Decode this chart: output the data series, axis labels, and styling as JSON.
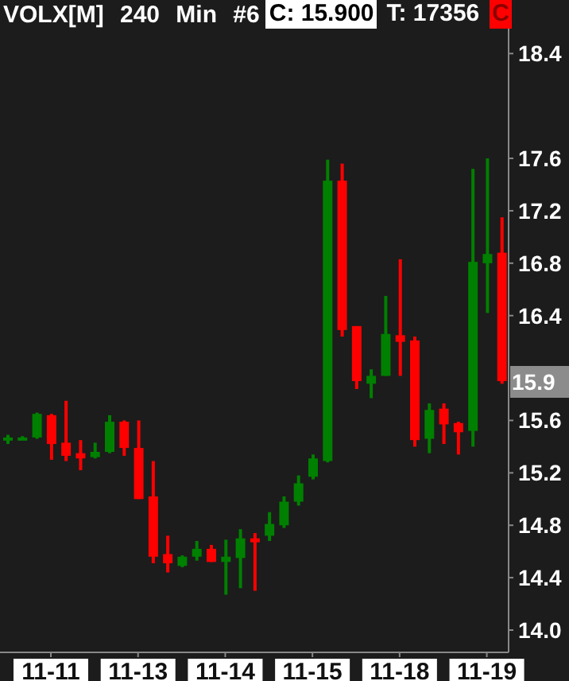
{
  "chart_data": {
    "type": "candlestick",
    "title": "VOLX[M] 240 Min #6",
    "annotations": [
      "C: 15.900",
      "T: 17356",
      "C",
      "15.9"
    ],
    "categories": [
      null,
      null,
      null,
      "11-11",
      null,
      null,
      null,
      null,
      null,
      "11-13",
      null,
      null,
      null,
      null,
      null,
      "11-14",
      null,
      null,
      null,
      null,
      null,
      "11-15",
      null,
      null,
      null,
      null,
      null,
      "11-18",
      null,
      null,
      null,
      null,
      null,
      "11-19",
      null
    ],
    "ohlc": [
      [
        15.45,
        15.49,
        15.42,
        15.47
      ],
      [
        15.45,
        15.48,
        15.45,
        15.47
      ],
      [
        15.47,
        15.66,
        15.46,
        15.65
      ],
      [
        15.64,
        15.65,
        15.3,
        15.42
      ],
      [
        15.43,
        15.75,
        15.29,
        15.33
      ],
      [
        15.35,
        15.45,
        15.22,
        15.31
      ],
      [
        15.32,
        15.43,
        15.31,
        15.36
      ],
      [
        15.36,
        15.64,
        15.35,
        15.59
      ],
      [
        15.59,
        15.6,
        15.33,
        15.39
      ],
      [
        15.39,
        15.6,
        15.0,
        15.0
      ],
      [
        15.02,
        15.29,
        14.51,
        14.56
      ],
      [
        14.58,
        14.72,
        14.44,
        14.51
      ],
      [
        14.49,
        14.57,
        14.48,
        14.56
      ],
      [
        14.56,
        14.68,
        14.53,
        14.62
      ],
      [
        14.62,
        14.65,
        14.52,
        14.52
      ],
      [
        14.52,
        14.69,
        14.27,
        14.56
      ],
      [
        14.55,
        14.77,
        14.32,
        14.7
      ],
      [
        14.7,
        14.74,
        14.3,
        14.67
      ],
      [
        14.72,
        14.9,
        14.68,
        14.81
      ],
      [
        14.8,
        15.02,
        14.78,
        14.98
      ],
      [
        14.98,
        15.18,
        14.95,
        15.12
      ],
      [
        15.17,
        15.34,
        15.15,
        15.31
      ],
      [
        15.29,
        17.59,
        15.28,
        17.43
      ],
      [
        17.43,
        17.56,
        16.24,
        16.29
      ],
      [
        16.32,
        16.32,
        15.84,
        15.9
      ],
      [
        15.88,
        15.99,
        15.77,
        15.94
      ],
      [
        15.94,
        16.55,
        15.94,
        16.26
      ],
      [
        16.25,
        16.83,
        15.94,
        16.2
      ],
      [
        16.21,
        16.24,
        15.4,
        15.45
      ],
      [
        15.46,
        15.73,
        15.35,
        15.68
      ],
      [
        15.69,
        15.73,
        15.42,
        15.57
      ],
      [
        15.58,
        15.59,
        15.34,
        15.51
      ],
      [
        15.52,
        17.52,
        15.4,
        16.81
      ],
      [
        16.8,
        17.6,
        16.42,
        16.87
      ],
      [
        16.88,
        17.15,
        15.88,
        15.9
      ]
    ],
    "colors": [
      "#008000",
      "#008000",
      "#008000",
      "#ff0000",
      "#ff0000",
      "#ff0000",
      "#008000",
      "#008000",
      "#ff0000",
      "#ff0000",
      "#ff0000",
      "#ff0000",
      "#008000",
      "#008000",
      "#ff0000",
      "#008000",
      "#008000",
      "#ff0000",
      "#008000",
      "#008000",
      "#008000",
      "#008000",
      "#008000",
      "#ff0000",
      "#ff0000",
      "#008000",
      "#008000",
      "#ff0000",
      "#ff0000",
      "#008000",
      "#ff0000",
      "#ff0000",
      "#008000",
      "#008000",
      "#ff0000"
    ],
    "ylim": [
      13.83,
      18.59
    ],
    "yticks": [
      {
        "value": 14,
        "label": "14.0"
      },
      14.4,
      14.8,
      15.2,
      15.6,
      16.4,
      16.8,
      17.2,
      17.6,
      18.4
    ]
  }
}
